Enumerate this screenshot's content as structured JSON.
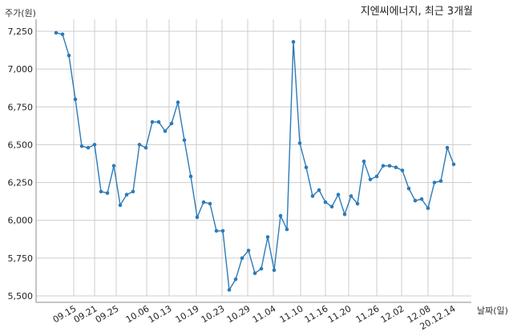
{
  "chart_data": {
    "type": "line",
    "title": "지엔씨에너지, 최근 3개월",
    "ylabel": "주가(원)",
    "xlabel": "날짜(일)",
    "ylim": [
      5500,
      7250
    ],
    "yticks": [
      5500,
      5750,
      6000,
      6250,
      6500,
      6750,
      7000,
      7250
    ],
    "ytick_labels": [
      "5,500",
      "5,750",
      "6,000",
      "6,250",
      "6,500",
      "6,750",
      "7,000",
      "7,250"
    ],
    "xtick_labels": [
      "09.15",
      "09.21",
      "09.25",
      "10.06",
      "10.13",
      "10.19",
      "10.23",
      "10.29",
      "11.04",
      "11.10",
      "11.16",
      "11.20",
      "11.26",
      "12.02",
      "12.08",
      "20.12.14"
    ],
    "grid": true,
    "line_color": "#2b7bb9",
    "series": [
      {
        "values": [
          7240,
          7230,
          7090,
          6800,
          6490,
          6480,
          6500,
          6190,
          6180,
          6360,
          6100,
          6170,
          6190,
          6500,
          6480,
          6650,
          6650,
          6590,
          6640,
          6780,
          6530,
          6290,
          6020,
          6120,
          6110,
          5930,
          5930,
          5540,
          5610,
          5750,
          5800,
          5650,
          5680,
          5890,
          5670,
          6030,
          5940,
          7180,
          6510,
          6350,
          6160,
          6200,
          6120,
          6090,
          6170,
          6040,
          6160,
          6110,
          6390,
          6270,
          6290,
          6360,
          6360,
          6350,
          6330,
          6210,
          6130,
          6140,
          6080,
          6250,
          6260,
          6480,
          6370
        ]
      }
    ]
  }
}
